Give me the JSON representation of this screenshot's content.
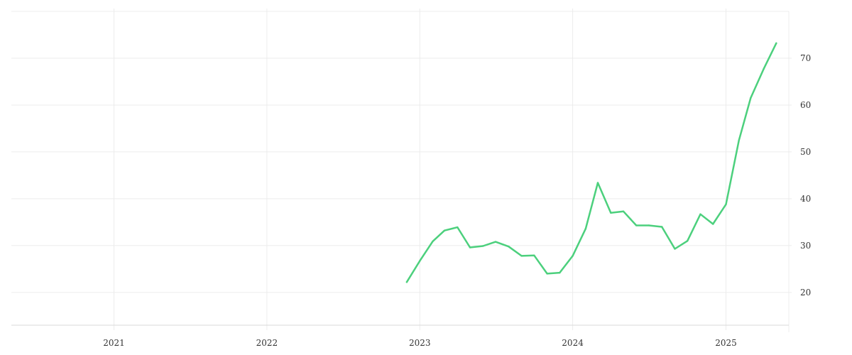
{
  "chart_data": {
    "type": "line",
    "title": "",
    "xlabel": "",
    "ylabel": "",
    "x_axis": {
      "type": "date",
      "range": [
        "2020-05-01",
        "2025-05-31"
      ],
      "ticks": [
        "2021-01-01",
        "2022-01-01",
        "2023-01-01",
        "2024-01-01",
        "2025-01-01"
      ],
      "tick_labels": [
        "2021",
        "2022",
        "2023",
        "2024",
        "2025"
      ]
    },
    "y_axis": {
      "position": "right",
      "range": [
        13,
        80
      ],
      "ticks": [
        20,
        30,
        40,
        50,
        60,
        70
      ],
      "tick_labels": [
        "20",
        "30",
        "40",
        "50",
        "60",
        "70"
      ]
    },
    "grid": true,
    "legend": "none",
    "series": [
      {
        "color": "#4cd07d",
        "x": [
          "2022-12-01",
          "2023-01-01",
          "2023-02-01",
          "2023-03-01",
          "2023-04-01",
          "2023-05-01",
          "2023-06-01",
          "2023-07-01",
          "2023-08-01",
          "2023-09-01",
          "2023-10-01",
          "2023-11-01",
          "2023-12-01",
          "2024-01-01",
          "2024-02-01",
          "2024-03-01",
          "2024-04-01",
          "2024-05-01",
          "2024-06-01",
          "2024-07-01",
          "2024-08-01",
          "2024-09-01",
          "2024-10-01",
          "2024-11-01",
          "2024-12-01",
          "2025-01-01",
          "2025-02-01",
          "2025-03-01",
          "2025-04-01",
          "2025-05-01"
        ],
        "values": [
          22.2,
          26.7,
          30.9,
          33.2,
          33.9,
          29.6,
          29.9,
          30.8,
          29.8,
          27.8,
          27.9,
          24.0,
          24.2,
          27.8,
          33.6,
          43.4,
          37.0,
          37.3,
          34.3,
          34.3,
          34.0,
          29.3,
          31.0,
          36.7,
          34.6,
          38.8,
          52.5,
          61.5,
          67.7,
          73.2
        ]
      }
    ]
  }
}
